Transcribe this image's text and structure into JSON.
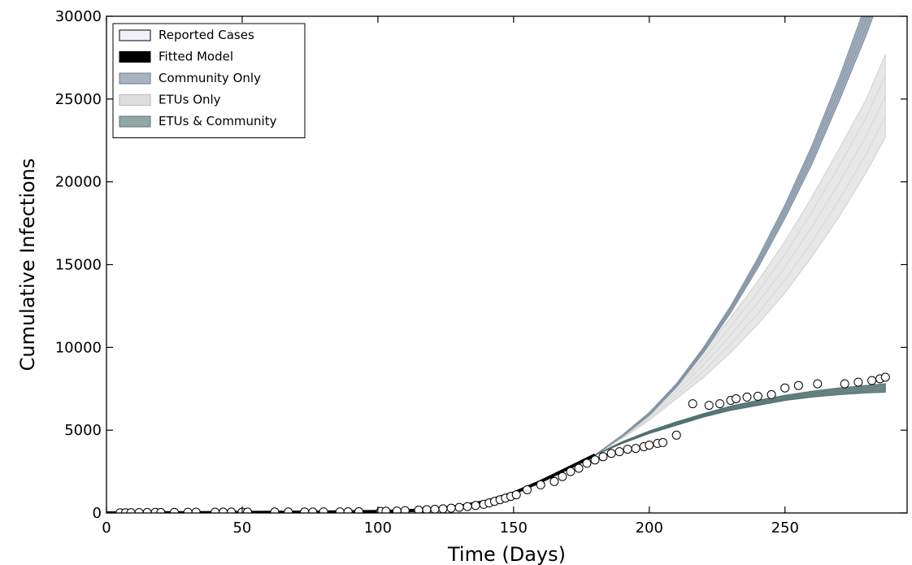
{
  "chart_data": {
    "type": "line",
    "title": "",
    "xlabel": "Time (Days)",
    "ylabel": "Cumulative Infections",
    "xlim": [
      0,
      295
    ],
    "ylim": [
      0,
      30000
    ],
    "xticks": [
      0,
      50,
      100,
      150,
      200,
      250
    ],
    "yticks": [
      0,
      5000,
      10000,
      15000,
      20000,
      25000,
      30000
    ],
    "grid": false,
    "legend_position": "top-left",
    "legend": [
      {
        "label": "Reported Cases",
        "swatch": "#f0f0fb",
        "border": "#000000"
      },
      {
        "label": "Fitted Model",
        "swatch": "#000000",
        "border": "#000000"
      },
      {
        "label": "Community Only",
        "swatch": "#a9b4c2",
        "border": "#6f7a86"
      },
      {
        "label": "ETUs Only",
        "swatch": "#dedede",
        "border": "#b8b8b8"
      },
      {
        "label": "ETUs & Community",
        "swatch": "#93a6a6",
        "border": "#5d7272"
      }
    ],
    "series": [
      {
        "name": "Reported Cases",
        "kind": "scatter",
        "color": "#ffffff",
        "x": [
          5,
          7,
          9,
          12,
          15,
          18,
          20,
          25,
          30,
          33,
          40,
          43,
          46,
          50,
          52,
          62,
          67,
          73,
          76,
          80,
          86,
          89,
          93,
          101,
          103,
          107,
          110,
          115,
          118,
          121,
          124,
          127,
          130,
          133,
          136,
          139,
          141,
          143,
          145,
          147,
          149,
          151,
          155,
          160,
          165,
          168,
          171,
          174,
          177,
          180,
          183,
          186,
          189,
          192,
          195,
          198,
          200,
          203,
          205,
          210,
          216,
          222,
          226,
          230,
          232,
          236,
          240,
          245,
          250,
          255,
          262,
          272,
          277,
          282,
          285,
          287
        ],
        "y": [
          10,
          15,
          20,
          25,
          30,
          35,
          30,
          40,
          45,
          50,
          50,
          55,
          55,
          50,
          55,
          60,
          60,
          65,
          60,
          70,
          70,
          75,
          80,
          100,
          110,
          120,
          140,
          170,
          200,
          220,
          250,
          290,
          340,
          390,
          450,
          520,
          610,
          700,
          800,
          900,
          1000,
          1100,
          1400,
          1700,
          1900,
          2200,
          2500,
          2700,
          3000,
          3200,
          3400,
          3600,
          3700,
          3850,
          3900,
          4000,
          4100,
          4200,
          4250,
          4700,
          6600,
          6500,
          6600,
          6800,
          6900,
          7000,
          7050,
          7150,
          7550,
          7700,
          7800,
          7800,
          7900,
          8000,
          8100,
          8200
        ]
      },
      {
        "name": "Fitted Model",
        "kind": "line",
        "color": "#000000",
        "x": [
          0,
          20,
          40,
          60,
          80,
          100,
          110,
          120,
          130,
          140,
          150,
          160,
          170,
          180
        ],
        "y": [
          0,
          10,
          20,
          35,
          55,
          90,
          130,
          220,
          400,
          700,
          1200,
          1900,
          2700,
          3500
        ]
      },
      {
        "name": "Community Only",
        "kind": "band",
        "color": "#8393a6",
        "x": [
          180,
          190,
          200,
          210,
          220,
          230,
          240,
          250,
          260,
          270,
          280,
          287
        ],
        "y_low": [
          3500,
          4600,
          5900,
          7600,
          9700,
          12100,
          14800,
          17800,
          21100,
          24900,
          28900,
          32000
        ],
        "y_high": [
          3500,
          4700,
          6050,
          7800,
          10000,
          12500,
          15400,
          18600,
          22200,
          26300,
          30800,
          34000
        ]
      },
      {
        "name": "ETUs Only",
        "kind": "band",
        "color": "#d4d4d4",
        "x": [
          180,
          190,
          200,
          210,
          220,
          230,
          240,
          250,
          260,
          270,
          280,
          287
        ],
        "y_low": [
          3500,
          4500,
          5600,
          6900,
          8200,
          9700,
          11400,
          13300,
          15500,
          17900,
          20600,
          22700
        ],
        "y_high": [
          3500,
          4700,
          6100,
          7800,
          9700,
          11800,
          14000,
          16400,
          19100,
          22000,
          25000,
          27700
        ]
      },
      {
        "name": "ETUs & Community",
        "kind": "band",
        "color": "#4f6e6e",
        "x": [
          180,
          190,
          200,
          210,
          220,
          230,
          240,
          250,
          260,
          270,
          280,
          287
        ],
        "y_low": [
          3500,
          4200,
          4800,
          5300,
          5800,
          6200,
          6500,
          6800,
          7000,
          7150,
          7250,
          7300
        ],
        "y_high": [
          3500,
          4300,
          4950,
          5500,
          6000,
          6450,
          6800,
          7100,
          7350,
          7550,
          7700,
          7800
        ]
      }
    ]
  }
}
